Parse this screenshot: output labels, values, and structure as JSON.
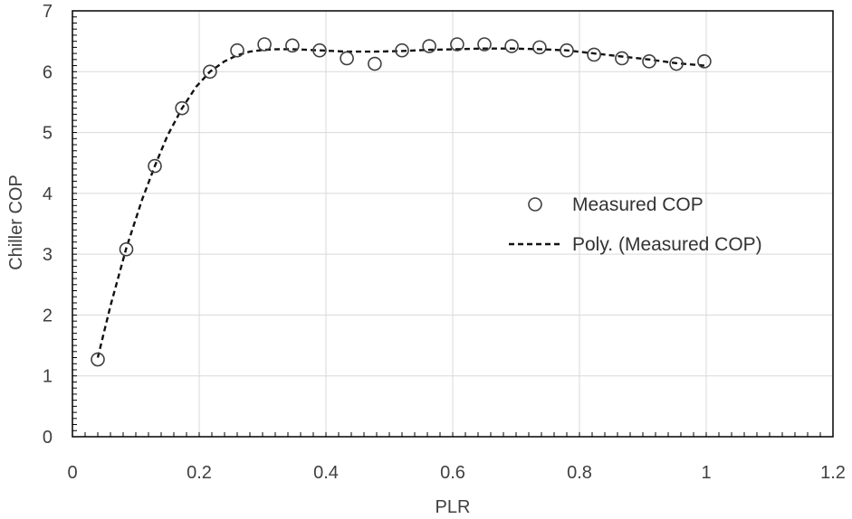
{
  "chart_data": {
    "type": "scatter",
    "title": "",
    "xlabel": "PLR",
    "ylabel": "Chiller COP",
    "xlim": [
      0,
      1.2
    ],
    "ylim": [
      0,
      7
    ],
    "xticks": [
      0,
      0.2,
      0.4,
      0.6,
      0.8,
      1,
      1.2
    ],
    "xtick_labels": [
      "0",
      "0.2",
      "0.4",
      "0.6",
      "0.8",
      "1",
      "1.2"
    ],
    "yticks": [
      0,
      1,
      2,
      3,
      4,
      5,
      6,
      7
    ],
    "ytick_labels": [
      "0",
      "1",
      "2",
      "3",
      "4",
      "5",
      "6",
      "7"
    ],
    "grid": true,
    "legend_position": "center-right",
    "series": [
      {
        "name": "Measured COP",
        "kind": "scatter",
        "marker": "open-circle",
        "x": [
          0.04,
          0.085,
          0.13,
          0.173,
          0.217,
          0.26,
          0.303,
          0.347,
          0.39,
          0.433,
          0.477,
          0.52,
          0.563,
          0.607,
          0.65,
          0.693,
          0.737,
          0.78,
          0.823,
          0.867,
          0.91,
          0.953,
          0.997
        ],
        "y": [
          1.27,
          3.08,
          4.45,
          5.4,
          6.0,
          6.35,
          6.45,
          6.43,
          6.35,
          6.22,
          6.13,
          6.35,
          6.42,
          6.45,
          6.45,
          6.42,
          6.4,
          6.35,
          6.28,
          6.22,
          6.17,
          6.13,
          6.17
        ]
      },
      {
        "name": "Poly. (Measured COP)",
        "kind": "line",
        "style": "dashed",
        "x": [
          0.04,
          0.06,
          0.085,
          0.11,
          0.13,
          0.15,
          0.173,
          0.195,
          0.217,
          0.24,
          0.26,
          0.28,
          0.303,
          0.325,
          0.347,
          0.39,
          0.433,
          0.477,
          0.52,
          0.563,
          0.607,
          0.65,
          0.693,
          0.737,
          0.78,
          0.823,
          0.867,
          0.91,
          0.953,
          0.997
        ],
        "y": [
          1.3,
          2.15,
          3.1,
          3.9,
          4.45,
          4.95,
          5.4,
          5.75,
          6.0,
          6.17,
          6.27,
          6.33,
          6.36,
          6.37,
          6.37,
          6.35,
          6.33,
          6.33,
          6.34,
          6.36,
          6.37,
          6.38,
          6.38,
          6.37,
          6.35,
          6.3,
          6.25,
          6.2,
          6.14,
          6.1
        ]
      }
    ]
  },
  "colors": {
    "marker": "#404040",
    "line": "#111111",
    "grid": "#d9d9d9",
    "axis": "#000000"
  }
}
